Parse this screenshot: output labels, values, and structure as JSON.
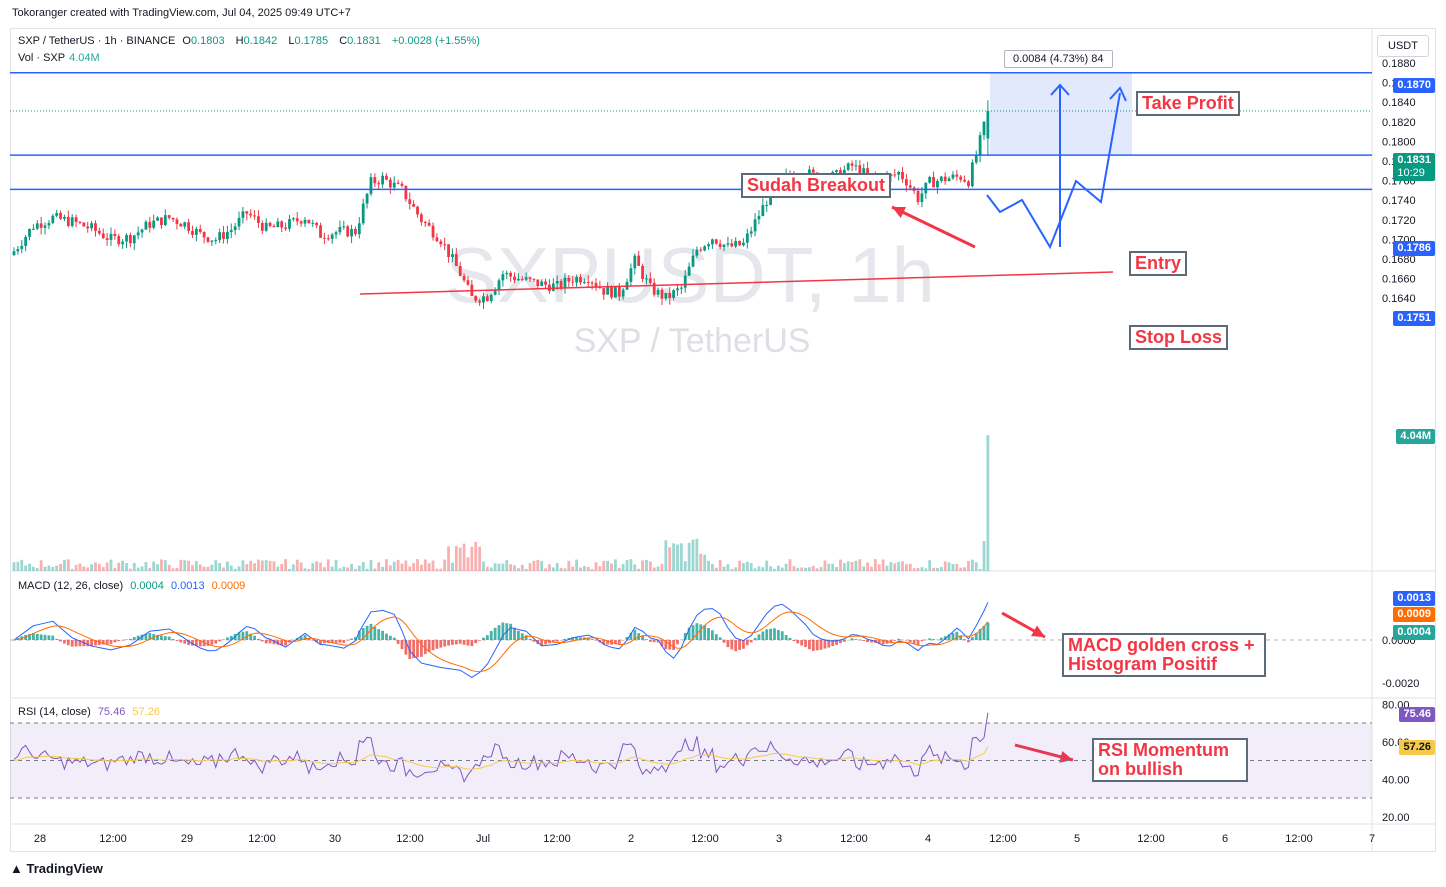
{
  "header": {
    "caption": "Tokoranger created with TradingView.com, Jul 04, 2025 09:49 UTC+7",
    "symbol": "SXP / TetherUS · 1h · BINANCE",
    "o_label": "O",
    "o": "0.1803",
    "h_label": "H",
    "h": "0.1842",
    "l_label": "L",
    "l": "0.1785",
    "c_label": "C",
    "c": "0.1831",
    "change": "+0.0028 (+1.55%)",
    "vol_label": "Vol · SXP",
    "vol_value": "4.04M"
  },
  "currency_button": "USDT",
  "watermark": {
    "ticker": "SXPUSDT, 1h",
    "name": "SXP / TetherUS"
  },
  "measure_label": "0.0084 (4.73%) 84",
  "annotations": {
    "take_profit": "Take Profit",
    "breakout": "Sudah Breakout",
    "entry": "Entry",
    "stop_loss": "Stop Loss",
    "macd_line1": "MACD golden cross +",
    "macd_line2": "Histogram Positif",
    "rsi_line1": "RSI Momentum",
    "rsi_line2": "on bullish"
  },
  "levels": {
    "take_profit": {
      "value": "0.1870",
      "color": "#2962ff"
    },
    "last_price": {
      "value": "0.1831",
      "countdown": "10:29",
      "color": "#089981"
    },
    "entry": {
      "value": "0.1786",
      "color": "#2962ff"
    },
    "stop_loss": {
      "value": "0.1751",
      "color": "#2962ff"
    },
    "volume": {
      "value": "4.04M",
      "color": "#26a69a"
    }
  },
  "macd": {
    "title": "MACD (12, 26, close)",
    "hist": "0.0004",
    "macd": "0.0013",
    "signal": "0.0009",
    "tags": [
      "0.0013",
      "0.0009",
      "0.0004"
    ],
    "axis": [
      "0.0000",
      "-0.0020"
    ]
  },
  "rsi": {
    "title": "RSI (14, close)",
    "value": "75.46",
    "ma": "57.26",
    "axis": [
      "80.00",
      "60.00",
      "40.00",
      "20.00"
    ]
  },
  "footer": {
    "brand": "TradingView"
  },
  "colors": {
    "up": "#089981",
    "down": "#f23645",
    "level": "#2962ff",
    "trend": "#f23645",
    "zone": "#dbe4fd"
  },
  "chart_data": {
    "type": "candlestick",
    "symbol": "SXPUSDT",
    "interval": "1h",
    "price_axis": [
      "0.1880",
      "0.1860",
      "0.1840",
      "0.1820",
      "0.1800",
      "0.1780",
      "0.1760",
      "0.1740",
      "0.1720",
      "0.1700",
      "0.1680",
      "0.1660",
      "0.1640"
    ],
    "time_axis": [
      "28",
      "12:00",
      "29",
      "12:00",
      "30",
      "12:00",
      "Jul",
      "12:00",
      "2",
      "12:00",
      "3",
      "12:00",
      "4",
      "12:00",
      "5",
      "12:00",
      "6",
      "12:00",
      "7"
    ],
    "ylim": [
      0.1625,
      0.1885
    ],
    "key_path": [
      {
        "i": 0,
        "p": 0.1688
      },
      {
        "i": 5,
        "p": 0.1714
      },
      {
        "i": 10,
        "p": 0.1722
      },
      {
        "i": 15,
        "p": 0.1718
      },
      {
        "i": 20,
        "p": 0.1711
      },
      {
        "i": 25,
        "p": 0.17
      },
      {
        "i": 30,
        "p": 0.1702
      },
      {
        "i": 35,
        "p": 0.1716
      },
      {
        "i": 40,
        "p": 0.1722
      },
      {
        "i": 44,
        "p": 0.1716
      },
      {
        "i": 48,
        "p": 0.1705
      },
      {
        "i": 52,
        "p": 0.17
      },
      {
        "i": 56,
        "p": 0.171
      },
      {
        "i": 60,
        "p": 0.1727
      },
      {
        "i": 65,
        "p": 0.1711
      },
      {
        "i": 70,
        "p": 0.1714
      },
      {
        "i": 75,
        "p": 0.1723
      },
      {
        "i": 79,
        "p": 0.1705
      },
      {
        "i": 84,
        "p": 0.1708
      },
      {
        "i": 88,
        "p": 0.1708
      },
      {
        "i": 92,
        "p": 0.1758
      },
      {
        "i": 95,
        "p": 0.1762
      },
      {
        "i": 100,
        "p": 0.175
      },
      {
        "i": 105,
        "p": 0.172
      },
      {
        "i": 110,
        "p": 0.17
      },
      {
        "i": 115,
        "p": 0.1665
      },
      {
        "i": 118,
        "p": 0.164
      },
      {
        "i": 122,
        "p": 0.1642
      },
      {
        "i": 126,
        "p": 0.1665
      },
      {
        "i": 130,
        "p": 0.166
      },
      {
        "i": 135,
        "p": 0.1655
      },
      {
        "i": 140,
        "p": 0.1652
      },
      {
        "i": 144,
        "p": 0.166
      },
      {
        "i": 148,
        "p": 0.1662
      },
      {
        "i": 152,
        "p": 0.1648
      },
      {
        "i": 156,
        "p": 0.1645
      },
      {
        "i": 160,
        "p": 0.1678
      },
      {
        "i": 164,
        "p": 0.165
      },
      {
        "i": 168,
        "p": 0.164
      },
      {
        "i": 172,
        "p": 0.165
      },
      {
        "i": 176,
        "p": 0.169
      },
      {
        "i": 180,
        "p": 0.1702
      },
      {
        "i": 184,
        "p": 0.1692
      },
      {
        "i": 188,
        "p": 0.1695
      },
      {
        "i": 192,
        "p": 0.1725
      },
      {
        "i": 196,
        "p": 0.1755
      },
      {
        "i": 200,
        "p": 0.1765
      },
      {
        "i": 204,
        "p": 0.1768
      },
      {
        "i": 208,
        "p": 0.1762
      },
      {
        "i": 212,
        "p": 0.1765
      },
      {
        "i": 216,
        "p": 0.1775
      },
      {
        "i": 220,
        "p": 0.1765
      },
      {
        "i": 224,
        "p": 0.176
      },
      {
        "i": 228,
        "p": 0.1768
      },
      {
        "i": 230,
        "p": 0.176
      },
      {
        "i": 233,
        "p": 0.1742
      },
      {
        "i": 236,
        "p": 0.1758
      },
      {
        "i": 240,
        "p": 0.1762
      },
      {
        "i": 244,
        "p": 0.1764
      },
      {
        "i": 246,
        "p": 0.176
      },
      {
        "i": 248,
        "p": 0.1786
      },
      {
        "i": 250,
        "p": 0.1815
      },
      {
        "i": 251,
        "p": 0.1831
      }
    ],
    "last": {
      "open": 0.1803,
      "high": 0.1842,
      "low": 0.1785,
      "close": 0.1831
    }
  }
}
